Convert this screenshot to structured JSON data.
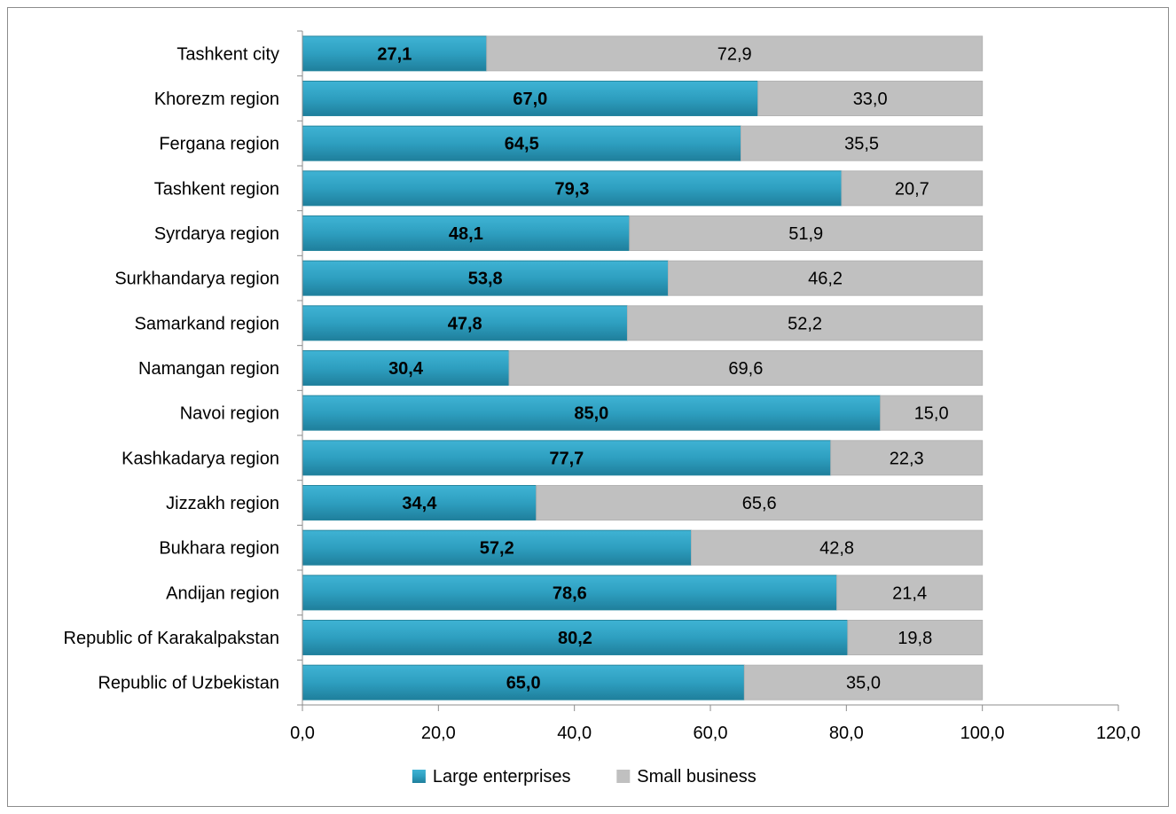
{
  "chart_data": {
    "type": "bar",
    "orientation": "horizontal",
    "stacked": true,
    "categories": [
      "Tashkent city",
      "Khorezm region",
      "Fergana region",
      "Tashkent region",
      "Syrdarya region",
      "Surkhandarya region",
      "Samarkand region",
      "Namangan region",
      "Navoi region",
      "Kashkadarya region",
      "Jizzakh region",
      "Bukhara region",
      "Andijan region",
      "Republic of Karakalpakstan",
      "Republic of Uzbekistan"
    ],
    "series": [
      {
        "name": "Large enterprises",
        "color": "#2e9fc0",
        "values": [
          27.1,
          67.0,
          64.5,
          79.3,
          48.1,
          53.8,
          47.8,
          30.4,
          85.0,
          77.7,
          34.4,
          57.2,
          78.6,
          80.2,
          65.0
        ],
        "labels": [
          "27,1",
          "67,0",
          "64,5",
          "79,3",
          "48,1",
          "53,8",
          "47,8",
          "30,4",
          "85,0",
          "77,7",
          "34,4",
          "57,2",
          "78,6",
          "80,2",
          "65,0"
        ]
      },
      {
        "name": "Small business",
        "color": "#c0c0c0",
        "values": [
          72.9,
          33.0,
          35.5,
          20.7,
          51.9,
          46.2,
          52.2,
          69.6,
          15.0,
          22.3,
          65.6,
          42.8,
          21.4,
          19.8,
          35.0
        ],
        "labels": [
          "72,9",
          "33,0",
          "35,5",
          "20,7",
          "51,9",
          "46,2",
          "52,2",
          "69,6",
          "15,0",
          "22,3",
          "65,6",
          "42,8",
          "21,4",
          "19,8",
          "35,0"
        ]
      }
    ],
    "xlim": [
      0,
      120
    ],
    "x_ticks": [
      0,
      20,
      40,
      60,
      80,
      100,
      120
    ],
    "x_tick_labels": [
      "0,0",
      "20,0",
      "40,0",
      "60,0",
      "80,0",
      "100,0",
      "120,0"
    ],
    "title": "",
    "xlabel": "",
    "ylabel": "",
    "grid": false,
    "legend_position": "bottom"
  }
}
